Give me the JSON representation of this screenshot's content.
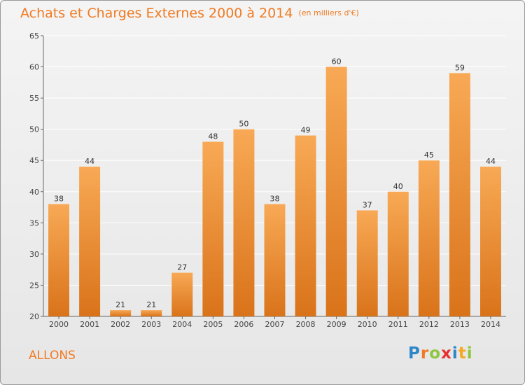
{
  "header": {
    "title": "Achats et Charges Externes 2000 à 2014",
    "unit": "(en milliers d'€)"
  },
  "location": "ALLONS",
  "logo": {
    "text": "Proxiti",
    "letters": [
      {
        "ch": "P",
        "color": "#2e86c9"
      },
      {
        "ch": "r",
        "color": "#f07a22"
      },
      {
        "ch": "o",
        "color": "#8dc63f"
      },
      {
        "ch": "x",
        "color": "#e8312f"
      },
      {
        "ch": "i",
        "color": "#2e86c9"
      },
      {
        "ch": "t",
        "color": "#f7a823"
      },
      {
        "ch": "i",
        "color": "#8dc63f"
      }
    ]
  },
  "colors": {
    "title": "#f07a22",
    "bar_top": "#f8a955",
    "bar_bottom": "#d9731a",
    "grid": "#ffffff",
    "axis": "#666666"
  },
  "chart_data": {
    "type": "bar",
    "title": "Achats et Charges Externes 2000 à 2014",
    "subtitle": "(en milliers d'€)",
    "xlabel": "",
    "ylabel": "",
    "categories": [
      "2000",
      "2001",
      "2002",
      "2003",
      "2004",
      "2005",
      "2006",
      "2007",
      "2008",
      "2009",
      "2010",
      "2011",
      "2012",
      "2013",
      "2014"
    ],
    "values": [
      38,
      44,
      21,
      21,
      27,
      48,
      50,
      38,
      49,
      60,
      37,
      40,
      45,
      59,
      44
    ],
    "ylim": [
      20,
      65
    ],
    "yticks": [
      20,
      25,
      30,
      35,
      40,
      45,
      50,
      55,
      60,
      65
    ],
    "grid": true,
    "legend": "none"
  }
}
